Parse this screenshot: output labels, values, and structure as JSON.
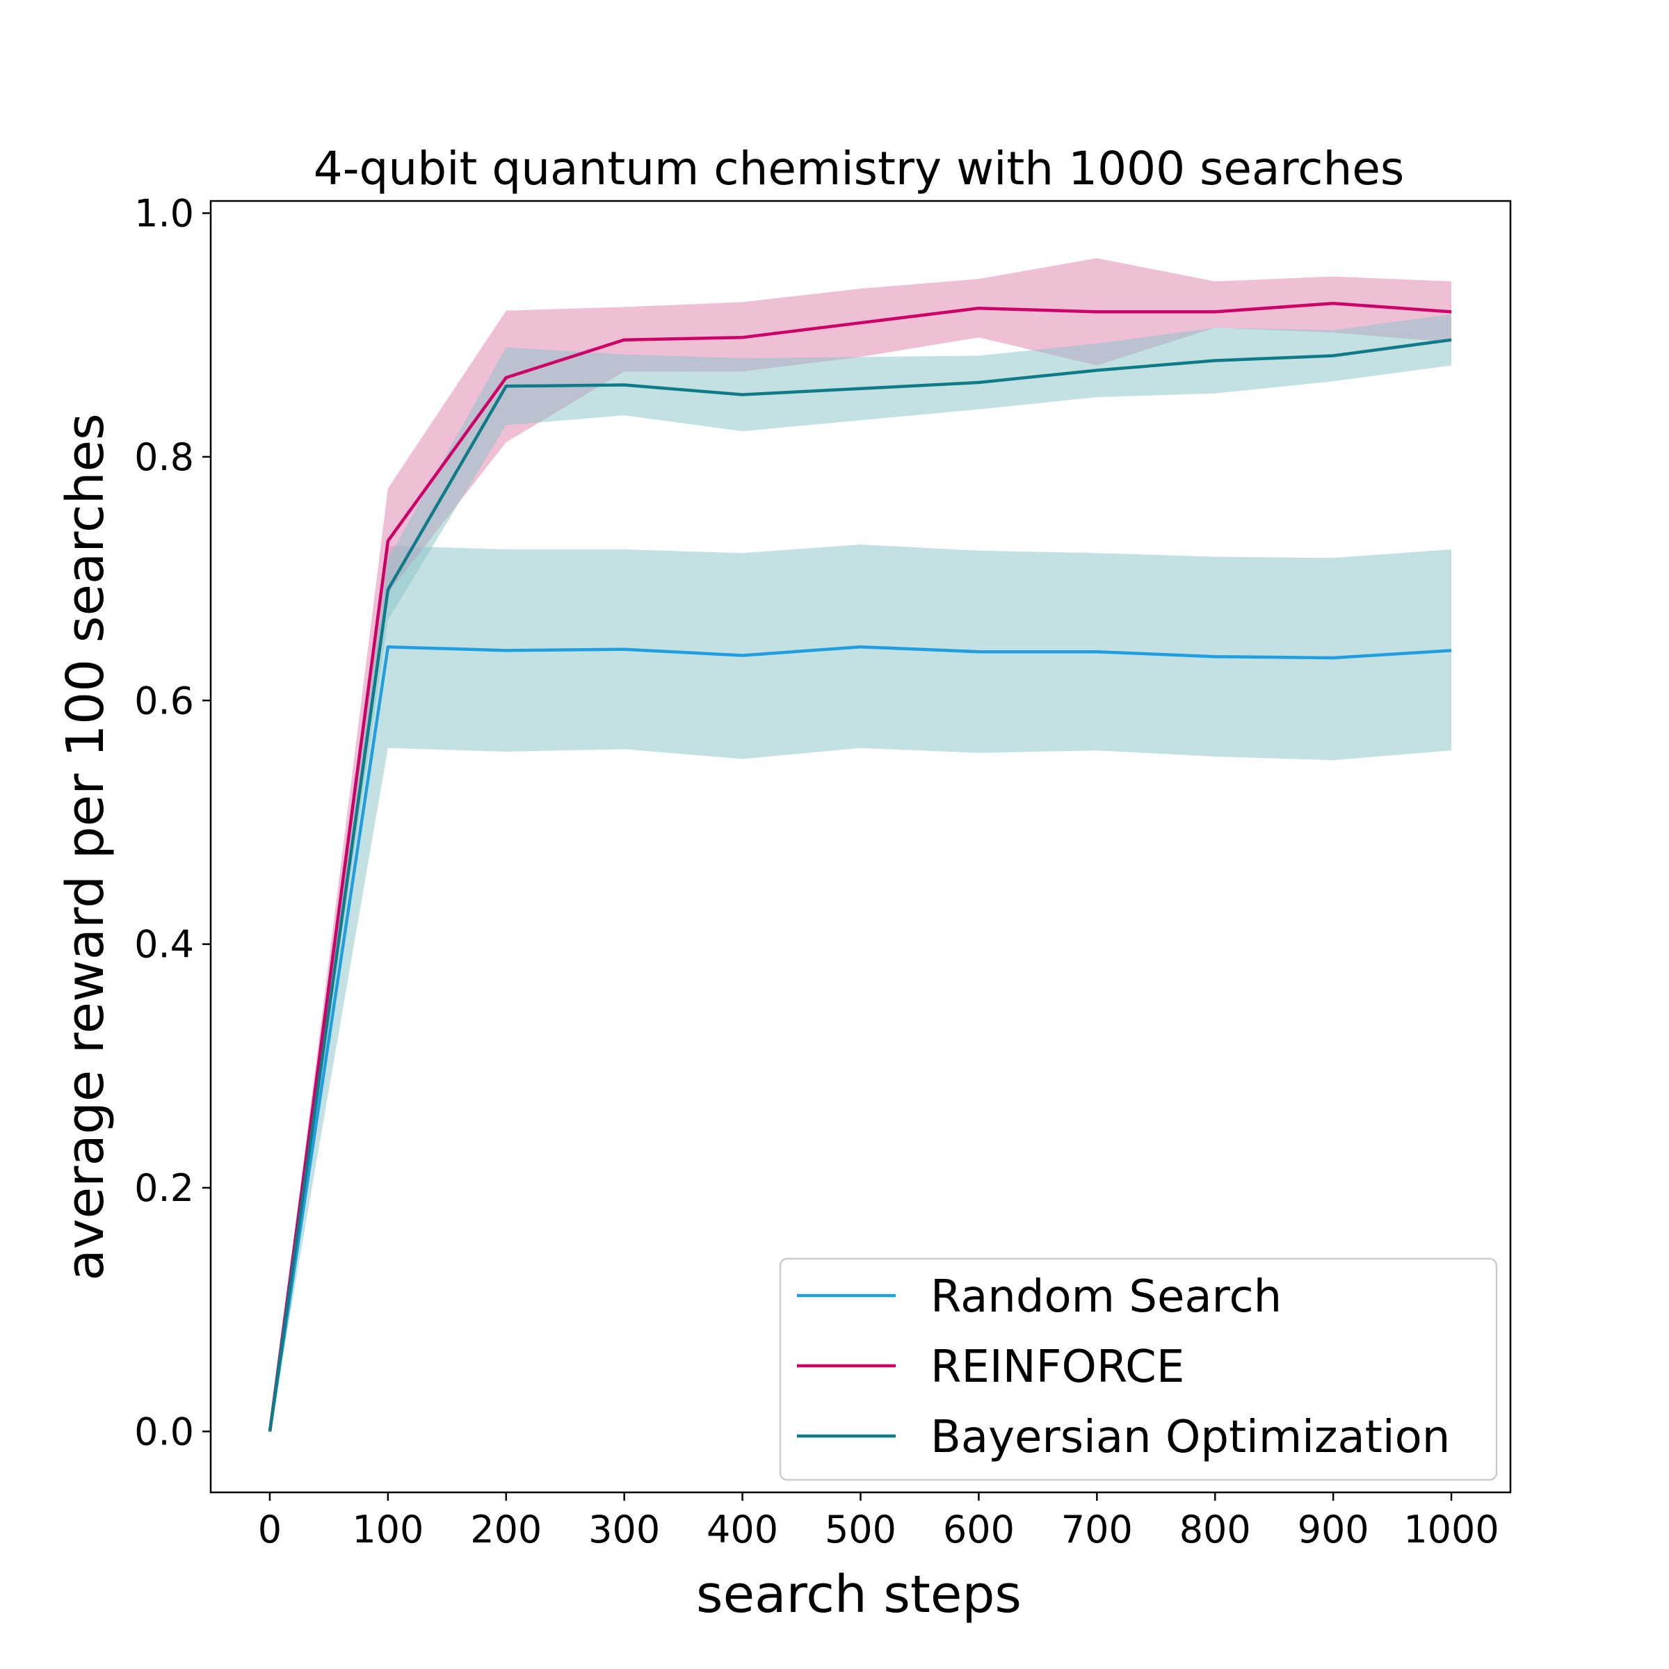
{
  "chart_data": {
    "type": "line",
    "title": "4-qubit quantum chemistry with 1000 searches",
    "xlabel": "search steps",
    "ylabel": "average reward per 100 searches",
    "xlim": [
      -50,
      1050
    ],
    "ylim": [
      -0.05,
      1.01
    ],
    "x": [
      0,
      100,
      200,
      300,
      400,
      500,
      600,
      700,
      800,
      900,
      1000
    ],
    "xticks": [
      "0",
      "100",
      "200",
      "300",
      "400",
      "500",
      "600",
      "700",
      "800",
      "900",
      "1000"
    ],
    "yticks": [
      "0.0",
      "0.2",
      "0.4",
      "0.6",
      "0.8",
      "1.0"
    ],
    "grid": false,
    "legend_position": "lower-right",
    "series": [
      {
        "name": "Random Search",
        "color": "#1f9fe0",
        "band_color": "#87c4c8",
        "values": [
          0.0,
          0.644,
          0.641,
          0.642,
          0.637,
          0.644,
          0.64,
          0.64,
          0.636,
          0.635,
          0.641
        ],
        "lower": [
          0.0,
          0.561,
          0.558,
          0.56,
          0.552,
          0.561,
          0.557,
          0.559,
          0.554,
          0.551,
          0.559
        ],
        "upper": [
          0.0,
          0.727,
          0.724,
          0.724,
          0.721,
          0.728,
          0.723,
          0.721,
          0.718,
          0.717,
          0.724
        ]
      },
      {
        "name": "REINFORCE",
        "color": "#cc0066",
        "band_color": "#e18ab5",
        "values": [
          0.0,
          0.731,
          0.865,
          0.896,
          0.898,
          0.91,
          0.922,
          0.919,
          0.919,
          0.926,
          0.919
        ],
        "lower": [
          0.0,
          0.688,
          0.812,
          0.87,
          0.87,
          0.882,
          0.898,
          0.875,
          0.906,
          0.902,
          0.894
        ],
        "upper": [
          0.0,
          0.774,
          0.92,
          0.923,
          0.927,
          0.938,
          0.946,
          0.963,
          0.944,
          0.948,
          0.944
        ]
      },
      {
        "name": "Bayersian Optimization",
        "color": "#107b88",
        "band_color": "#87c4c8",
        "values": [
          0.0,
          0.691,
          0.858,
          0.859,
          0.851,
          0.856,
          0.861,
          0.871,
          0.879,
          0.883,
          0.896
        ],
        "lower": [
          0.0,
          0.666,
          0.826,
          0.834,
          0.821,
          0.83,
          0.839,
          0.849,
          0.852,
          0.862,
          0.875
        ],
        "upper": [
          0.0,
          0.716,
          0.89,
          0.884,
          0.881,
          0.882,
          0.883,
          0.893,
          0.906,
          0.904,
          0.917
        ]
      }
    ]
  }
}
